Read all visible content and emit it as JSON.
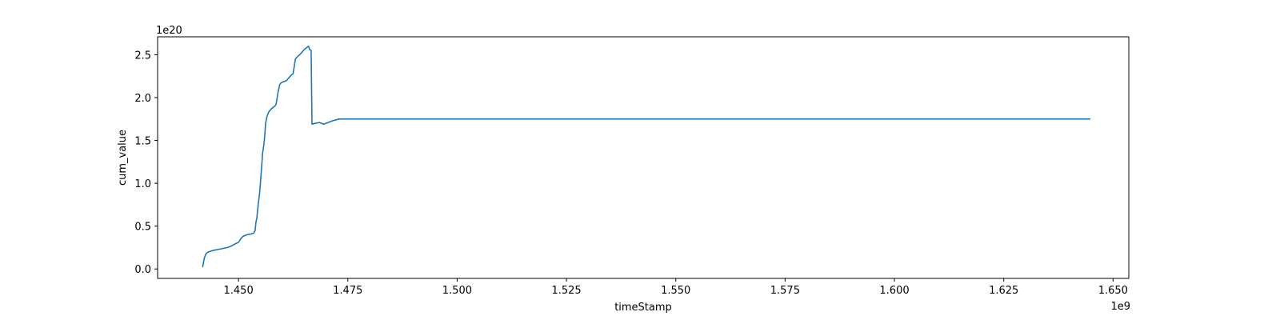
{
  "chart_data": {
    "type": "line",
    "title": "",
    "xlabel": "timeStamp",
    "ylabel": "cum_value",
    "x_offset_label": "1e9",
    "y_offset_label": "1e20",
    "xlim": [
      1.4315,
      1.6536
    ],
    "ylim": [
      -0.11,
      2.71
    ],
    "xticks": [
      1.45,
      1.475,
      1.5,
      1.525,
      1.55,
      1.575,
      1.6,
      1.625,
      1.65
    ],
    "xtick_labels": [
      "1.450",
      "1.475",
      "1.500",
      "1.525",
      "1.550",
      "1.575",
      "1.600",
      "1.625",
      "1.650"
    ],
    "yticks": [
      0.0,
      0.5,
      1.0,
      1.5,
      2.0,
      2.5
    ],
    "ytick_labels": [
      "0.0",
      "0.5",
      "1.0",
      "1.5",
      "2.0",
      "2.5"
    ],
    "grid": false,
    "series": [
      {
        "color": "#1f77b4",
        "x": [
          1.4418,
          1.442,
          1.4422,
          1.4425,
          1.4428,
          1.4432,
          1.4438,
          1.4445,
          1.4455,
          1.4465,
          1.4475,
          1.448,
          1.4488,
          1.4495,
          1.45,
          1.4505,
          1.451,
          1.452,
          1.453,
          1.4535,
          1.4538,
          1.454,
          1.4542,
          1.4545,
          1.4548,
          1.455,
          1.4553,
          1.4555,
          1.4558,
          1.456,
          1.4562,
          1.4565,
          1.4568,
          1.457,
          1.4572,
          1.4575,
          1.4578,
          1.458,
          1.4583,
          1.4586,
          1.459,
          1.4594,
          1.4597,
          1.46,
          1.4605,
          1.461,
          1.4615,
          1.462,
          1.4625,
          1.463,
          1.4635,
          1.464,
          1.4645,
          1.465,
          1.4655,
          1.466,
          1.4663,
          1.4666,
          1.4668,
          1.4675,
          1.4685,
          1.4695,
          1.4705,
          1.4715,
          1.473,
          1.48,
          1.5,
          1.55,
          1.6,
          1.6448
        ],
        "values": [
          0.02,
          0.08,
          0.13,
          0.17,
          0.19,
          0.2,
          0.21,
          0.22,
          0.23,
          0.24,
          0.25,
          0.26,
          0.28,
          0.3,
          0.31,
          0.35,
          0.38,
          0.4,
          0.41,
          0.42,
          0.45,
          0.55,
          0.6,
          0.75,
          0.88,
          1.0,
          1.2,
          1.35,
          1.45,
          1.55,
          1.7,
          1.78,
          1.82,
          1.84,
          1.85,
          1.87,
          1.88,
          1.89,
          1.9,
          1.92,
          2.05,
          2.15,
          2.17,
          2.18,
          2.19,
          2.2,
          2.23,
          2.26,
          2.28,
          2.45,
          2.48,
          2.5,
          2.53,
          2.56,
          2.58,
          2.6,
          2.56,
          2.55,
          1.69,
          1.7,
          1.71,
          1.69,
          1.71,
          1.73,
          1.75,
          1.75,
          1.75,
          1.75,
          1.75,
          1.75
        ]
      }
    ]
  }
}
